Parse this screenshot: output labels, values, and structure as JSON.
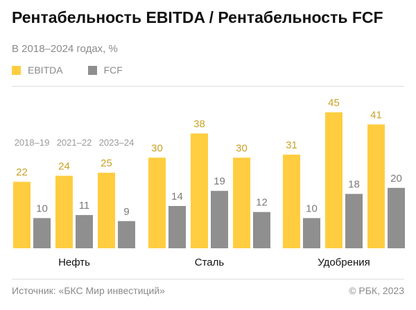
{
  "header": {
    "title": "Рентабельность EBITDA / Рентабельность FCF",
    "subtitle": "В 2018–2024 годах, %"
  },
  "legend": [
    {
      "label": "EBITDA",
      "color": "#ffcd3f"
    },
    {
      "label": "FCF",
      "color": "#8f8f8f"
    }
  ],
  "footer": {
    "source": "Источник: «БКС Мир инвестиций»",
    "copyright": "© РБК, 2023"
  },
  "colors": {
    "ebitda": "#ffcd3f",
    "fcf": "#8f8f8f",
    "ebitda_label": "#c9a227",
    "fcf_label": "#7a7a7a",
    "period_label": "#9a9a9a",
    "group_label": "#111111"
  },
  "chart_data": {
    "type": "bar",
    "periods": [
      "2018–19",
      "2021–22",
      "2023–24"
    ],
    "groups": [
      {
        "name": "Нефть",
        "ebitda": [
          22,
          24,
          25
        ],
        "fcf": [
          10,
          11,
          9
        ]
      },
      {
        "name": "Сталь",
        "ebitda": [
          30,
          38,
          30
        ],
        "fcf": [
          14,
          19,
          12
        ]
      },
      {
        "name": "Удобрения",
        "ebitda": [
          31,
          45,
          41
        ],
        "fcf": [
          10,
          18,
          20
        ]
      }
    ],
    "series": [
      {
        "name": "EBITDA",
        "values": [
          22,
          24,
          25,
          30,
          38,
          30,
          31,
          45,
          41
        ]
      },
      {
        "name": "FCF",
        "values": [
          10,
          11,
          9,
          14,
          19,
          12,
          10,
          18,
          20
        ]
      }
    ],
    "ylim": [
      0,
      45
    ],
    "grid": false,
    "legend_position": "top-left"
  }
}
